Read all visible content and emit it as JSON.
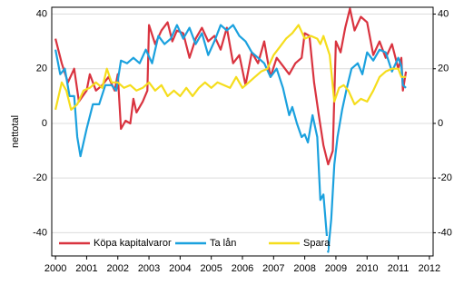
{
  "chart_data": {
    "type": "line",
    "y_label": "nettotal",
    "xlim": [
      1999.88,
      2012.12
    ],
    "xticks": [
      2000,
      2001,
      2002,
      2003,
      2004,
      2005,
      2006,
      2007,
      2008,
      2009,
      2010,
      2011,
      2012
    ],
    "ylim": [
      -48.5,
      42.5
    ],
    "yticks": [
      -40,
      -20,
      0,
      20,
      40
    ],
    "y2lim": [
      -48.5,
      42.5
    ],
    "y2ticks": [
      -40,
      -20,
      0,
      20,
      40
    ],
    "grid": true,
    "legend": "bottom-left",
    "series": [
      {
        "name": "Köpa kapitalvaror",
        "color": "#d9333f",
        "x": [
          2000,
          2000.2,
          2000.4,
          2000.6,
          2000.75,
          2001,
          2001.1,
          2001.3,
          2001.5,
          2001.7,
          2001.9,
          2002,
          2002.1,
          2002.25,
          2002.4,
          2002.5,
          2002.6,
          2002.8,
          2002.95,
          2003,
          2003.2,
          2003.4,
          2003.6,
          2003.75,
          2003.9,
          2004.1,
          2004.3,
          2004.5,
          2004.7,
          2004.9,
          2005.1,
          2005.3,
          2005.5,
          2005.7,
          2005.9,
          2006.1,
          2006.3,
          2006.5,
          2006.7,
          2006.9,
          2007.1,
          2007.3,
          2007.5,
          2007.7,
          2007.9,
          2008,
          2008.15,
          2008.3,
          2008.45,
          2008.6,
          2008.75,
          2008.9,
          2009,
          2009.15,
          2009.3,
          2009.45,
          2009.6,
          2009.8,
          2010,
          2010.2,
          2010.4,
          2010.6,
          2010.8,
          2011,
          2011.1,
          2011.15,
          2011.25
        ],
        "values": [
          31,
          22,
          15,
          20,
          8,
          12,
          18,
          12,
          14,
          17,
          12,
          18,
          -2,
          1,
          0,
          9,
          4,
          8,
          12,
          36,
          29,
          34,
          37,
          30,
          34,
          33,
          24,
          31,
          35,
          30,
          32,
          27,
          35,
          22,
          25,
          14,
          26,
          22,
          30,
          17,
          24,
          21,
          18,
          22,
          24,
          33,
          32,
          15,
          3,
          -8,
          -15,
          -10,
          30,
          26,
          35,
          42,
          34,
          39,
          37,
          25,
          30,
          24,
          29,
          20,
          24,
          12,
          19
        ]
      },
      {
        "name": "Ta lån",
        "color": "#1ba1de",
        "x": [
          2000,
          2000.15,
          2000.3,
          2000.45,
          2000.6,
          2000.7,
          2000.8,
          2001,
          2001.2,
          2001.4,
          2001.6,
          2001.8,
          2001.95,
          2002.1,
          2002.3,
          2002.5,
          2002.7,
          2002.9,
          2003.1,
          2003.3,
          2003.5,
          2003.7,
          2003.9,
          2004.1,
          2004.3,
          2004.5,
          2004.7,
          2004.9,
          2005.1,
          2005.3,
          2005.5,
          2005.7,
          2005.9,
          2006.1,
          2006.3,
          2006.5,
          2006.7,
          2006.9,
          2007.1,
          2007.3,
          2007.5,
          2007.6,
          2007.75,
          2007.9,
          2008,
          2008.1,
          2008.25,
          2008.4,
          2008.5,
          2008.6,
          2008.75,
          2008.85,
          2008.95,
          2009.05,
          2009.2,
          2009.35,
          2009.5,
          2009.7,
          2009.85,
          2010,
          2010.2,
          2010.4,
          2010.6,
          2010.8,
          2011,
          2011.1,
          2011.15,
          2011.25
        ],
        "values": [
          27,
          18,
          20,
          10,
          10,
          -5,
          -12,
          -2,
          7,
          7,
          14,
          14,
          12,
          23,
          22,
          24,
          22,
          27,
          22,
          32,
          29,
          31,
          36,
          31,
          35,
          29,
          33,
          25,
          30,
          36,
          34,
          36,
          32,
          30,
          26,
          24,
          22,
          17,
          20,
          13,
          3,
          6,
          0,
          -5,
          -4,
          -7,
          3,
          -5,
          -28,
          -26,
          -47,
          -35,
          -15,
          -5,
          5,
          13,
          20,
          22,
          18,
          26,
          23,
          27,
          26,
          19,
          24,
          21,
          14,
          13
        ]
      },
      {
        "name": "Spara",
        "color": "#f5dd1c",
        "x": [
          2000,
          2000.2,
          2000.35,
          2000.5,
          2000.7,
          2000.9,
          2001.1,
          2001.3,
          2001.5,
          2001.65,
          2001.8,
          2002,
          2002.2,
          2002.4,
          2002.6,
          2002.8,
          2003,
          2003.2,
          2003.4,
          2003.6,
          2003.8,
          2004,
          2004.2,
          2004.4,
          2004.6,
          2004.8,
          2005,
          2005.2,
          2005.4,
          2005.6,
          2005.8,
          2006,
          2006.2,
          2006.4,
          2006.6,
          2006.8,
          2007,
          2007.2,
          2007.4,
          2007.6,
          2007.8,
          2008,
          2008.2,
          2008.4,
          2008.5,
          2008.6,
          2008.8,
          2008.95,
          2009.1,
          2009.25,
          2009.4,
          2009.6,
          2009.8,
          2010,
          2010.2,
          2010.4,
          2010.6,
          2010.8,
          2011,
          2011.1,
          2011.25
        ],
        "values": [
          5,
          15,
          12,
          5,
          7,
          12,
          13,
          15,
          13,
          20,
          15,
          15,
          13,
          14,
          12,
          13,
          15,
          12,
          14,
          10,
          12,
          10,
          13,
          10,
          13,
          15,
          13,
          15,
          14,
          13,
          17,
          13,
          15,
          17,
          19,
          20,
          25,
          28,
          31,
          33,
          36,
          31,
          32,
          31,
          29,
          32,
          25,
          8,
          13,
          14,
          12,
          7,
          9,
          8,
          12,
          17,
          19,
          20,
          20,
          17,
          17
        ]
      }
    ]
  }
}
